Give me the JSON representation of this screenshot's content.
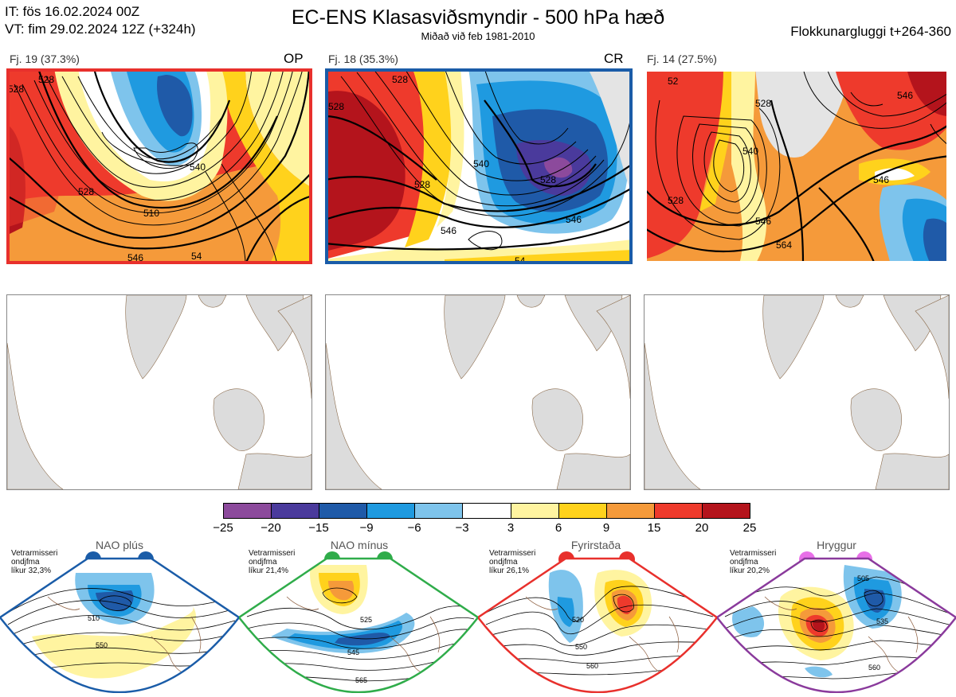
{
  "header": {
    "it_line": "IT: fös 16.02.2024 00Z",
    "vt_line": "VT: fim 29.02.2024 12Z  (+324h)",
    "title": "EC-ENS Klasasviðsmyndir - 500 hPa hæð",
    "subtitle": "Miðað við feb 1981-2010",
    "window": "Flokkunargluggi t+264-360"
  },
  "clusters": [
    {
      "label": "Fj. 19 (37.3%)",
      "tag": "OP",
      "frame_color": "#e8302c",
      "contour_labels": [
        "528",
        "540",
        "510",
        "546",
        "528",
        "528",
        "54"
      ]
    },
    {
      "label": "Fj. 18 (35.3%)",
      "tag": "CR",
      "frame_color": "#1a5ca8",
      "contour_labels": [
        "528",
        "528",
        "540",
        "528",
        "546",
        "528",
        "546",
        "54"
      ]
    },
    {
      "label": "Fj. 14 (27.5%)",
      "tag": "",
      "frame_color": "#ffffff",
      "contour_labels": [
        "52",
        "528",
        "540",
        "528",
        "546",
        "546",
        "546",
        "564"
      ]
    }
  ],
  "colorbar": {
    "labels": [
      "−25",
      "−20",
      "−15",
      "−9",
      "−6",
      "−3",
      "3",
      "6",
      "9",
      "15",
      "20",
      "25"
    ],
    "colors": [
      "#8c4a9c",
      "#4a3a9c",
      "#1f5aa8",
      "#1f9ae0",
      "#7ec4ec",
      "#ffffff",
      "#fff4a0",
      "#ffd21c",
      "#f59a3a",
      "#ee3a2c",
      "#b4141c"
    ]
  },
  "regimes": [
    {
      "name": "NAO plús",
      "note": [
        "Vetrarmisseri",
        "ondjfma",
        "líkur 32,3%"
      ],
      "color": "#1a5ca8",
      "labels": [
        "510",
        "550"
      ]
    },
    {
      "name": "NAO mínus",
      "note": [
        "Vetrarmisseri",
        "ondjfma",
        "líkur 21,4%"
      ],
      "color": "#2fac4a",
      "labels": [
        "525",
        "545",
        "565"
      ]
    },
    {
      "name": "Fyrirstaða",
      "note": [
        "Vetrarmisseri",
        "ondjfma",
        "líkur 26,1%"
      ],
      "color": "#e8302c",
      "labels": [
        "520",
        "550",
        "560"
      ]
    },
    {
      "name": "Hryggur",
      "note": [
        "Vetrarmisseri",
        "ondjfma",
        "líkur 20,2%"
      ],
      "color": "#8a3a9c",
      "labels": [
        "505",
        "535",
        "560"
      ]
    }
  ]
}
